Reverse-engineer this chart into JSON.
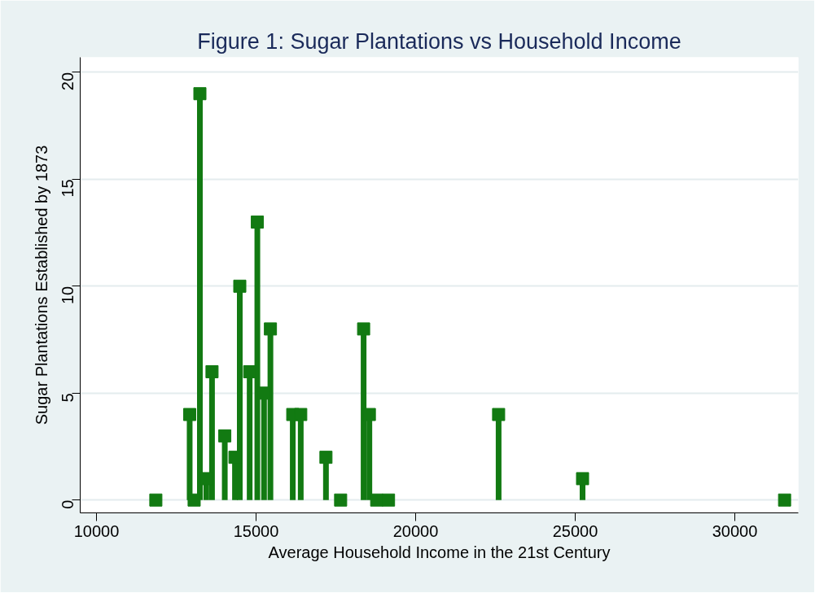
{
  "chart_data": {
    "type": "lollipop",
    "title": "Figure 1: Sugar Plantations vs Household Income",
    "xlabel": "Average Household Income in the 21st Century",
    "ylabel": "Sugar Plantations Established by 1873",
    "x": [
      11860,
      12920,
      13060,
      13240,
      13440,
      13620,
      14020,
      14340,
      14490,
      14800,
      15040,
      15250,
      15450,
      16150,
      16400,
      17190,
      17650,
      18370,
      18550,
      18780,
      19150,
      22600,
      25230,
      31560
    ],
    "series": [
      {
        "color": "#127a12",
        "values": [
          0,
          4,
          0,
          19,
          1,
          6,
          3,
          2,
          10,
          6,
          13,
          5,
          8,
          4,
          4,
          2,
          0,
          8,
          4,
          0,
          0,
          4,
          1,
          0
        ]
      }
    ],
    "xlim": [
      9490,
      31990
    ],
    "ylim": [
      -0.6,
      20.7
    ],
    "xticks": [
      10000,
      15000,
      20000,
      25000,
      30000
    ],
    "yticks": [
      0,
      5,
      10,
      15,
      20
    ],
    "grid": "y",
    "marker": "square"
  }
}
